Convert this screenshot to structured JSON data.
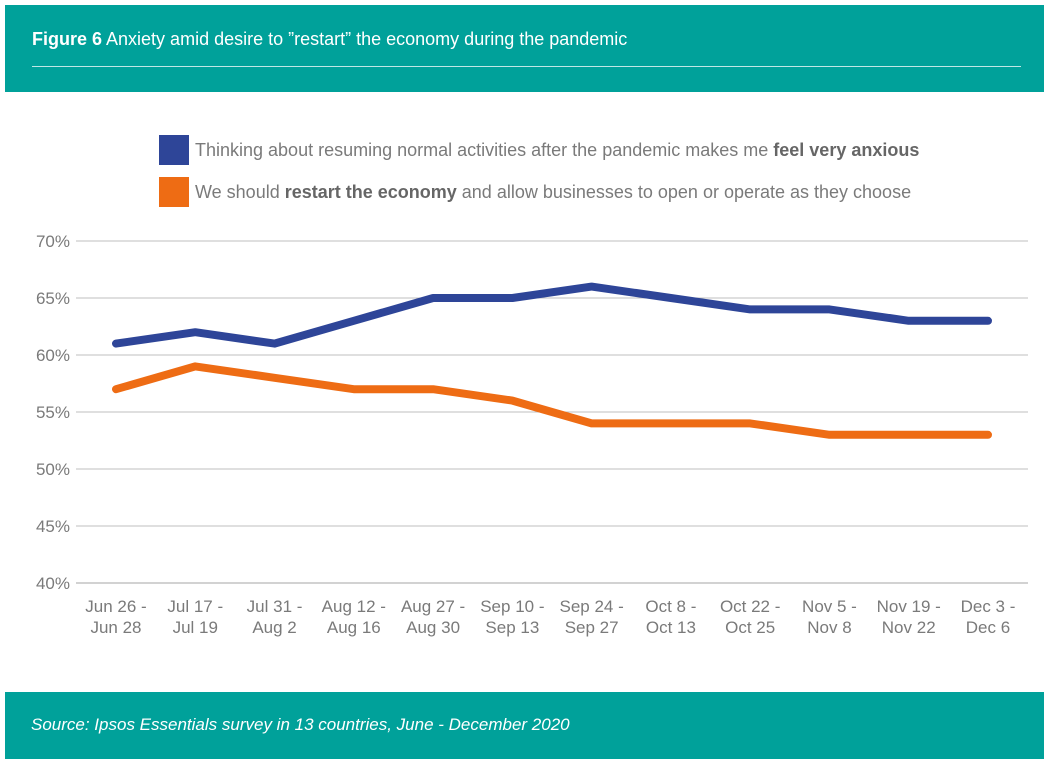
{
  "header": {
    "figure_label": "Figure 6",
    "title": "Anxiety amid desire to ”restart” the economy during the pandemic"
  },
  "legend": [
    {
      "pre": "Thinking about resuming normal activities after the pandemic makes me ",
      "bold": "feel very anxious",
      "post": "",
      "color": "#2e4598"
    },
    {
      "pre": "We should ",
      "bold": "restart the economy",
      "post": " and allow businesses to open or operate as they choose",
      "color": "#ee6c14"
    }
  ],
  "footer": {
    "source": "Source: Ipsos Essentials survey in 13 countries, June - December 2020"
  },
  "chart_data": {
    "type": "line",
    "x": [
      [
        "Jun 26 -",
        "Jun 28"
      ],
      [
        "Jul 17 -",
        "Jul 19"
      ],
      [
        "Jul 31 -",
        "Aug 2"
      ],
      [
        "Aug 12 -",
        "Aug 16"
      ],
      [
        "Aug 27 -",
        "Aug 30"
      ],
      [
        "Sep 10 -",
        "Sep 13"
      ],
      [
        "Sep 24 -",
        "Sep 27"
      ],
      [
        "Oct 8 -",
        "Oct 13"
      ],
      [
        "Oct 22 -",
        "Oct 25"
      ],
      [
        "Nov 5 -",
        "Nov 8"
      ],
      [
        "Nov 19 -",
        "Nov 22"
      ],
      [
        "Dec 3 -",
        "Dec 6"
      ]
    ],
    "series": [
      {
        "values": [
          61,
          62,
          61,
          63,
          65,
          65,
          66,
          65,
          64,
          64,
          63,
          63
        ],
        "color": "#2e4598"
      },
      {
        "values": [
          57,
          59,
          58,
          57,
          57,
          56,
          54,
          54,
          54,
          53,
          53,
          53
        ],
        "color": "#ee6c14"
      }
    ],
    "y_ticks": [
      "40%",
      "45%",
      "50%",
      "55%",
      "60%",
      "65%",
      "70%"
    ],
    "ylim": [
      40,
      70
    ],
    "grid": true,
    "legend_position": "top"
  }
}
